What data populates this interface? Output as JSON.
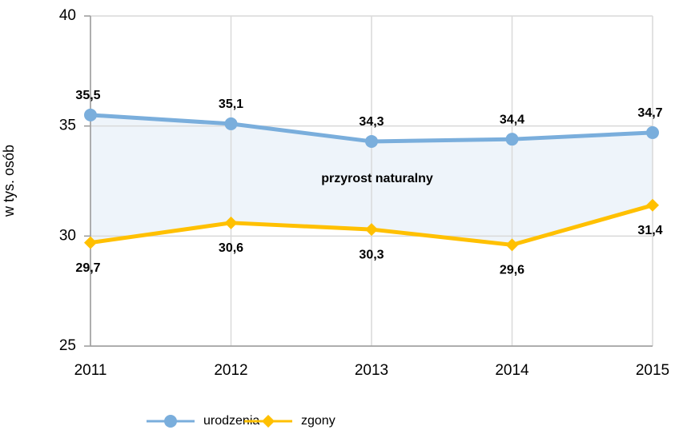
{
  "chart_data": {
    "type": "line",
    "y_label": "w tys. osób",
    "annotation": "przyrost naturalny",
    "categories": [
      "2011",
      "2012",
      "2013",
      "2014",
      "2015"
    ],
    "series": [
      {
        "name": "urodzenia",
        "color": "#7aaedc",
        "marker": "circle",
        "values": [
          35.5,
          35.1,
          34.3,
          34.4,
          34.7
        ],
        "value_labels": [
          "35,5",
          "35,1",
          "34,3",
          "34,4",
          "34,7"
        ]
      },
      {
        "name": "zgony",
        "color": "#ffc000",
        "marker": "diamond",
        "values": [
          29.7,
          30.6,
          30.3,
          29.6,
          31.4
        ],
        "value_labels": [
          "29,7",
          "30,6",
          "30,3",
          "29,6",
          "31,4"
        ]
      }
    ],
    "fill_between": "#eef4fa",
    "ylim": [
      25,
      40
    ],
    "yticks": [
      25,
      30,
      35,
      40
    ],
    "grid": true,
    "legend": "bottom"
  }
}
